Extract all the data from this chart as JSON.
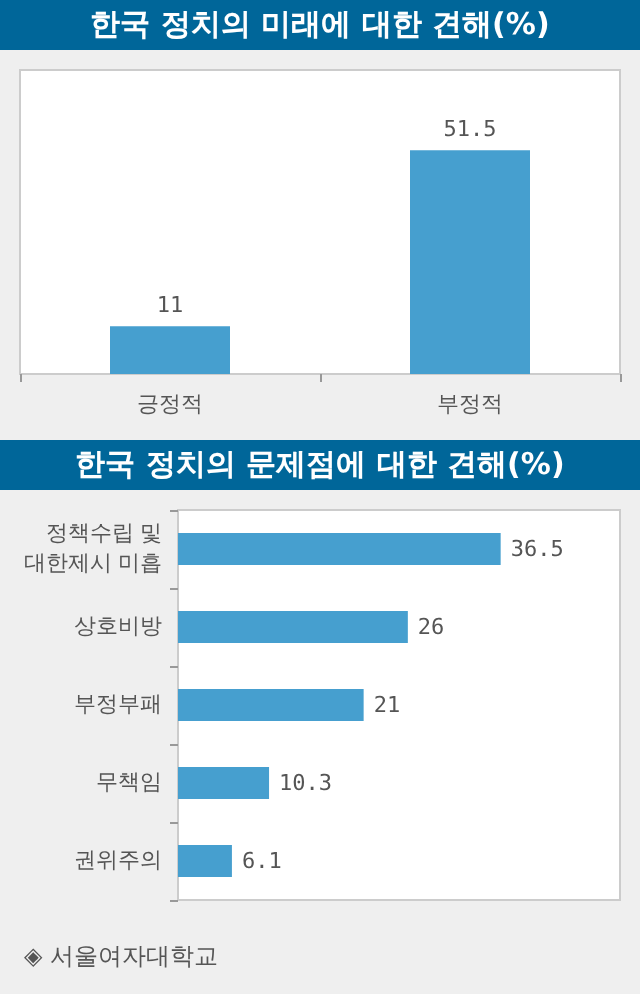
{
  "chart_data": [
    {
      "type": "bar",
      "title": "한국 정치의 미래에 대한 견해(%)",
      "categories": [
        "긍정적",
        "부정적"
      ],
      "values": [
        11,
        51.5
      ],
      "color": "#469fcf",
      "data_labels": true
    },
    {
      "type": "bar",
      "orientation": "horizontal",
      "title": "한국 정치의 문제점에 대한 견해(%)",
      "categories": [
        "정책수립 및\n대한제시 미흡",
        "상호비방",
        "부정부패",
        "무책임",
        "권위주의"
      ],
      "values": [
        36.5,
        26,
        21,
        10.3,
        6.1
      ],
      "color": "#469fcf",
      "data_labels": true,
      "annotations": [
        "◈ 서울여자대학교"
      ]
    }
  ]
}
